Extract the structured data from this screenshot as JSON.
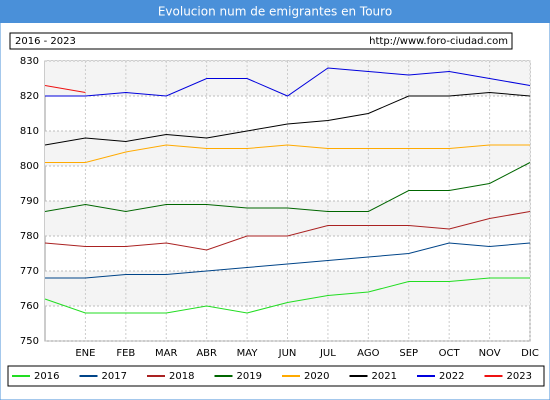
{
  "chart_data": {
    "type": "line",
    "title": "Evolucion num de emigrantes en Touro",
    "period": "2016 - 2023",
    "source": "http://www.foro-ciudad.com",
    "categories": [
      null,
      "ENE",
      "FEB",
      "MAR",
      "ABR",
      "MAY",
      "JUN",
      "JUL",
      "AGO",
      "SEP",
      "OCT",
      "NOV",
      "DIC"
    ],
    "series": [
      {
        "name": "2016",
        "color": "#22dd22",
        "values": [
          762,
          758,
          758,
          758,
          760,
          758,
          761,
          763,
          764,
          767,
          767,
          768,
          768
        ]
      },
      {
        "name": "2017",
        "color": "#004488",
        "values": [
          768,
          768,
          769,
          769,
          770,
          771,
          772,
          773,
          774,
          775,
          778,
          777,
          778
        ]
      },
      {
        "name": "2018",
        "color": "#aa2222",
        "values": [
          778,
          777,
          777,
          778,
          776,
          780,
          780,
          783,
          783,
          783,
          782,
          785,
          787
        ]
      },
      {
        "name": "2019",
        "color": "#006600",
        "values": [
          787,
          789,
          787,
          789,
          789,
          788,
          788,
          787,
          787,
          793,
          793,
          795,
          801
        ]
      },
      {
        "name": "2020",
        "color": "#ffaa00",
        "values": [
          801,
          801,
          804,
          806,
          805,
          805,
          806,
          805,
          805,
          805,
          805,
          806,
          806
        ]
      },
      {
        "name": "2021",
        "color": "#000000",
        "values": [
          806,
          808,
          807,
          809,
          808,
          810,
          812,
          813,
          815,
          820,
          820,
          821,
          820
        ]
      },
      {
        "name": "2022",
        "color": "#0000dd",
        "values": [
          820,
          820,
          821,
          820,
          825,
          825,
          820,
          828,
          827,
          826,
          827,
          825,
          823
        ]
      },
      {
        "name": "2023",
        "color": "#ee1111",
        "values": [
          823,
          821,
          null,
          null,
          null,
          null,
          null,
          null,
          null,
          null,
          null,
          null,
          null
        ]
      }
    ],
    "ylim": [
      750,
      830
    ],
    "yticks": [
      750,
      760,
      770,
      780,
      790,
      800,
      810,
      820,
      830
    ],
    "grid": true
  }
}
